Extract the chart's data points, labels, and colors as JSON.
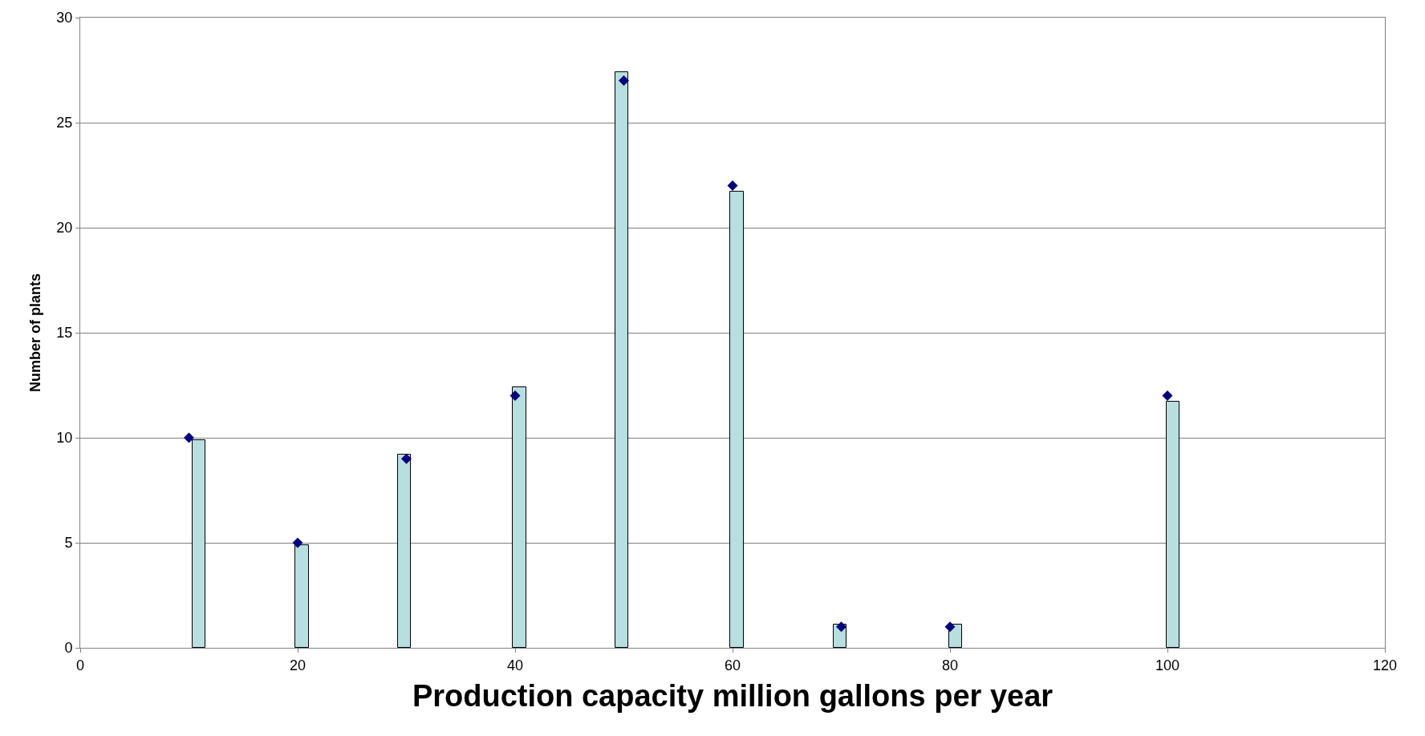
{
  "chart_data": {
    "type": "bar",
    "xlabel": "Production capacity million gallons per year",
    "ylabel": "Number of plants",
    "xlim": [
      0,
      120
    ],
    "xticks": [
      0,
      20,
      40,
      60,
      80,
      100,
      120
    ],
    "ylim": [
      0,
      30
    ],
    "yticks": [
      0,
      5,
      10,
      15,
      20,
      25,
      30
    ],
    "grid": "y",
    "series": [
      {
        "color": "#b7dfdf",
        "x": [
          10.9,
          20.4,
          29.8,
          40.4,
          49.8,
          60.4,
          69.9,
          80.5,
          100.5
        ],
        "values": [
          9.9,
          4.9,
          9.2,
          12.4,
          27.4,
          21.7,
          1.1,
          1.1,
          11.7
        ]
      },
      {
        "type": "scatter",
        "marker": "diamond",
        "color": "#000080",
        "x": [
          10,
          20,
          30,
          40,
          50,
          60,
          70,
          80,
          100
        ],
        "values": [
          10,
          5,
          9,
          12,
          27,
          22,
          1,
          1,
          12
        ]
      }
    ]
  }
}
